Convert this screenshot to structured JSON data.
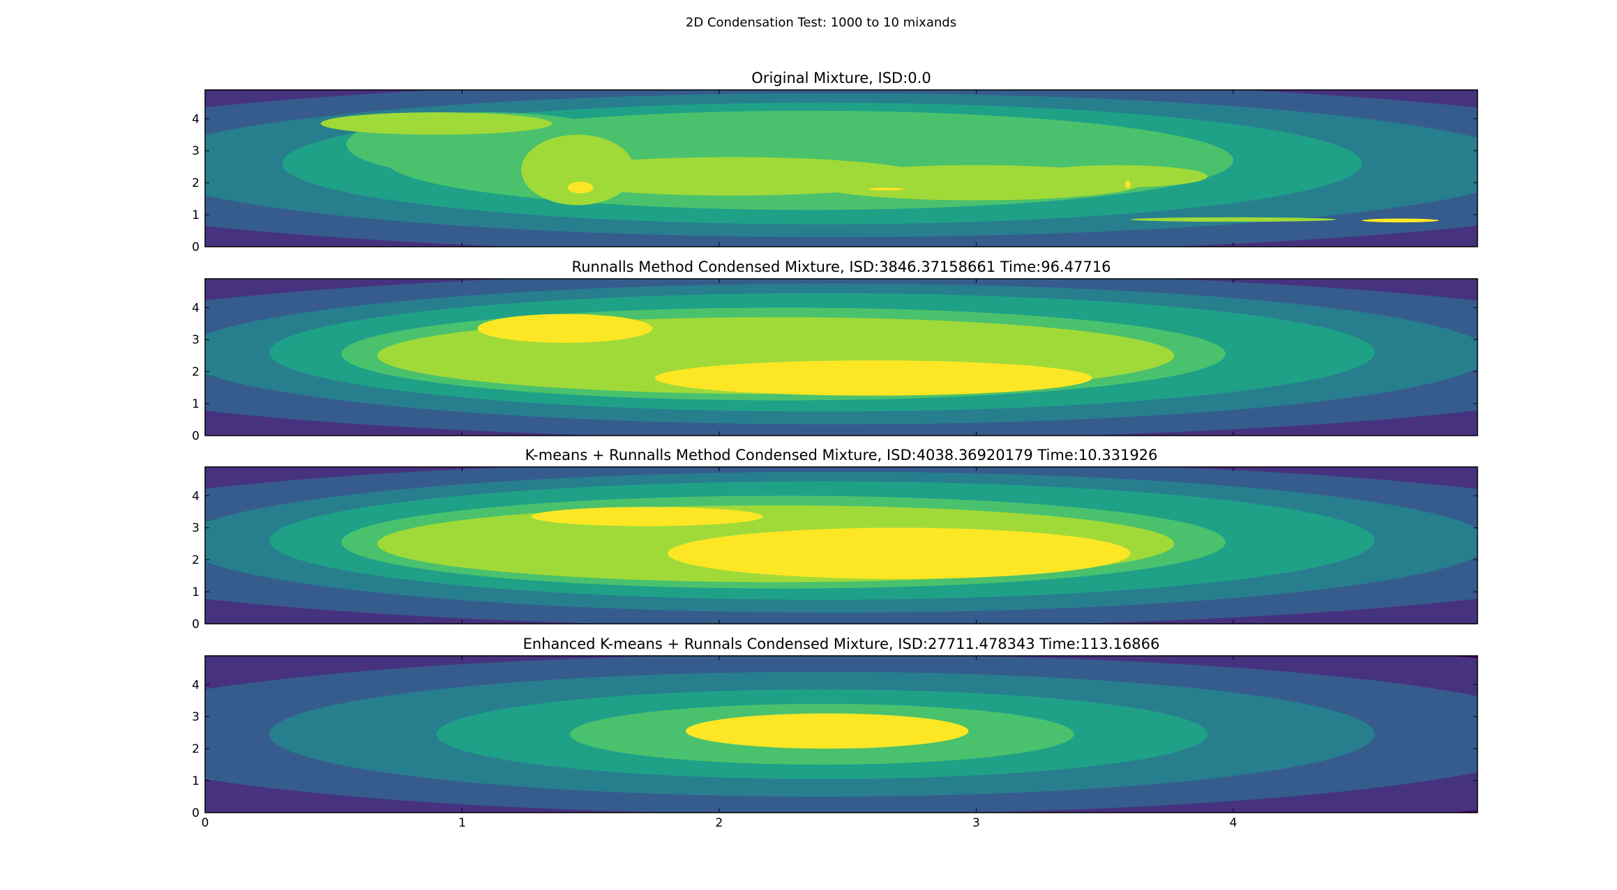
{
  "figure": {
    "suptitle": "2D Condensation Test: 1000 to 10 mixands"
  },
  "colormap": [
    "#440154",
    "#46327e",
    "#365c8d",
    "#277f8e",
    "#1fa187",
    "#4ac16d",
    "#a0da39",
    "#fde725"
  ],
  "chart_data": [
    {
      "type": "contour",
      "title": "Original Mixture, ISD:0.0",
      "xlabel": "",
      "ylabel": "",
      "xlim": [
        0,
        4.95
      ],
      "ylim": [
        0,
        4.9
      ],
      "xticks": [
        "0",
        "1",
        "2",
        "3",
        "4"
      ],
      "yticks": [
        "0",
        "1",
        "2",
        "3",
        "4"
      ],
      "show_x_tick_labels": false,
      "bands": [
        {
          "color": "#46327e",
          "shape": "ellipse",
          "cx": 2.47,
          "cy": 2.45,
          "rx": 4.8,
          "ry": 4.6
        },
        {
          "color": "#365c8d",
          "shape": "ellipse",
          "cx": 2.47,
          "cy": 2.5,
          "rx": 3.4,
          "ry": 2.7
        },
        {
          "color": "#277f8e",
          "shape": "ellipse",
          "cx": 2.45,
          "cy": 2.55,
          "rx": 2.7,
          "ry": 2.25
        },
        {
          "color": "#1fa187",
          "shape": "ellipse",
          "cx": 2.4,
          "cy": 2.6,
          "rx": 2.1,
          "ry": 1.9
        },
        {
          "color": "#4ac16d",
          "shape": "ellipse",
          "cx": 2.35,
          "cy": 2.7,
          "rx": 1.65,
          "ry": 1.55
        },
        {
          "color": "#4ac16d",
          "shape": "ellipse",
          "cx": 1.1,
          "cy": 3.2,
          "rx": 0.55,
          "ry": 1.0
        },
        {
          "color": "#a0da39",
          "shape": "ellipse",
          "cx": 0.9,
          "cy": 3.85,
          "rx": 0.45,
          "ry": 0.35
        },
        {
          "color": "#a0da39",
          "shape": "ellipse",
          "cx": 2.05,
          "cy": 2.2,
          "rx": 0.75,
          "ry": 0.6
        },
        {
          "color": "#a0da39",
          "shape": "ellipse",
          "cx": 3.0,
          "cy": 2.0,
          "rx": 0.65,
          "ry": 0.55
        },
        {
          "color": "#a0da39",
          "shape": "ellipse",
          "cx": 1.45,
          "cy": 2.4,
          "rx": 0.22,
          "ry": 1.1
        },
        {
          "color": "#a0da39",
          "shape": "ellipse",
          "cx": 3.55,
          "cy": 2.2,
          "rx": 0.35,
          "ry": 0.35
        },
        {
          "color": "#a0da39",
          "shape": "ellipse",
          "cx": 4.0,
          "cy": 0.85,
          "rx": 0.4,
          "ry": 0.07
        },
        {
          "color": "#fde725",
          "shape": "ellipse",
          "cx": 1.46,
          "cy": 1.85,
          "rx": 0.05,
          "ry": 0.18
        },
        {
          "color": "#fde725",
          "shape": "ellipse",
          "cx": 2.65,
          "cy": 1.8,
          "rx": 0.07,
          "ry": 0.04
        },
        {
          "color": "#fde725",
          "shape": "ellipse",
          "cx": 3.59,
          "cy": 1.95,
          "rx": 0.01,
          "ry": 0.12
        },
        {
          "color": "#fde725",
          "shape": "ellipse",
          "cx": 4.65,
          "cy": 0.82,
          "rx": 0.15,
          "ry": 0.06
        }
      ]
    },
    {
      "type": "contour",
      "title": "Runnalls Method Condensed Mixture, ISD:3846.37158661 Time:96.47716",
      "xlabel": "",
      "ylabel": "",
      "xlim": [
        0,
        4.95
      ],
      "ylim": [
        0,
        4.9
      ],
      "xticks": [
        "0",
        "1",
        "2",
        "3",
        "4"
      ],
      "yticks": [
        "0",
        "1",
        "2",
        "3",
        "4"
      ],
      "show_x_tick_labels": false,
      "bands": [
        {
          "color": "#46327e",
          "shape": "ellipse",
          "cx": 2.47,
          "cy": 2.45,
          "rx": 4.8,
          "ry": 4.6
        },
        {
          "color": "#365c8d",
          "shape": "ellipse",
          "cx": 2.47,
          "cy": 2.5,
          "rx": 3.3,
          "ry": 2.6
        },
        {
          "color": "#277f8e",
          "shape": "ellipse",
          "cx": 2.45,
          "cy": 2.55,
          "rx": 2.55,
          "ry": 2.2
        },
        {
          "color": "#1fa187",
          "shape": "ellipse",
          "cx": 2.4,
          "cy": 2.6,
          "rx": 2.15,
          "ry": 1.85
        },
        {
          "color": "#4ac16d",
          "shape": "ellipse",
          "cx": 2.25,
          "cy": 2.55,
          "rx": 1.72,
          "ry": 1.45
        },
        {
          "color": "#a0da39",
          "shape": "ellipse",
          "cx": 2.22,
          "cy": 2.5,
          "rx": 1.55,
          "ry": 1.2
        },
        {
          "color": "#fde725",
          "shape": "ellipse",
          "cx": 1.4,
          "cy": 3.35,
          "rx": 0.34,
          "ry": 0.45
        },
        {
          "color": "#fde725",
          "shape": "ellipse",
          "cx": 2.6,
          "cy": 1.8,
          "rx": 0.85,
          "ry": 0.55
        }
      ]
    },
    {
      "type": "contour",
      "title": "K-means + Runnalls Method Condensed Mixture, ISD:4038.36920179 Time:10.331926",
      "xlabel": "",
      "ylabel": "",
      "xlim": [
        0,
        4.95
      ],
      "ylim": [
        0,
        4.9
      ],
      "xticks": [
        "0",
        "1",
        "2",
        "3",
        "4"
      ],
      "yticks": [
        "0",
        "1",
        "2",
        "3",
        "4"
      ],
      "show_x_tick_labels": false,
      "bands": [
        {
          "color": "#46327e",
          "shape": "ellipse",
          "cx": 2.47,
          "cy": 2.45,
          "rx": 4.8,
          "ry": 4.6
        },
        {
          "color": "#365c8d",
          "shape": "ellipse",
          "cx": 2.47,
          "cy": 2.5,
          "rx": 3.3,
          "ry": 2.6
        },
        {
          "color": "#277f8e",
          "shape": "ellipse",
          "cx": 2.45,
          "cy": 2.55,
          "rx": 2.55,
          "ry": 2.2
        },
        {
          "color": "#1fa187",
          "shape": "ellipse",
          "cx": 2.4,
          "cy": 2.6,
          "rx": 2.15,
          "ry": 1.85
        },
        {
          "color": "#4ac16d",
          "shape": "ellipse",
          "cx": 2.25,
          "cy": 2.55,
          "rx": 1.72,
          "ry": 1.45
        },
        {
          "color": "#a0da39",
          "shape": "ellipse",
          "cx": 2.22,
          "cy": 2.5,
          "rx": 1.55,
          "ry": 1.2
        },
        {
          "color": "#fde725",
          "shape": "ellipse",
          "cx": 1.72,
          "cy": 3.35,
          "rx": 0.45,
          "ry": 0.3
        },
        {
          "color": "#fde725",
          "shape": "ellipse",
          "cx": 2.7,
          "cy": 2.2,
          "rx": 0.9,
          "ry": 0.8
        }
      ]
    },
    {
      "type": "contour",
      "title": "Enhanced K-means + Runnals Condensed Mixture, ISD:27711.478343 Time:113.16866",
      "xlabel": "",
      "ylabel": "",
      "xlim": [
        0,
        4.95
      ],
      "ylim": [
        0,
        4.9
      ],
      "xticks": [
        "0",
        "1",
        "2",
        "3",
        "4"
      ],
      "yticks": [
        "0",
        "1",
        "2",
        "3",
        "4"
      ],
      "show_x_tick_labels": true,
      "bands": [
        {
          "color": "#440154",
          "shape": "ellipse",
          "cx": 2.4,
          "cy": 2.45,
          "rx": 4.8,
          "ry": 4.6
        },
        {
          "color": "#46327e",
          "shape": "ellipse",
          "cx": 2.4,
          "cy": 2.45,
          "rx": 3.8,
          "ry": 3.2
        },
        {
          "color": "#365c8d",
          "shape": "ellipse",
          "cx": 2.4,
          "cy": 2.45,
          "rx": 2.9,
          "ry": 2.5
        },
        {
          "color": "#277f8e",
          "shape": "ellipse",
          "cx": 2.4,
          "cy": 2.45,
          "rx": 2.15,
          "ry": 1.95
        },
        {
          "color": "#1fa187",
          "shape": "ellipse",
          "cx": 2.4,
          "cy": 2.45,
          "rx": 1.5,
          "ry": 1.4
        },
        {
          "color": "#4ac16d",
          "shape": "ellipse",
          "cx": 2.4,
          "cy": 2.45,
          "rx": 0.98,
          "ry": 0.95
        },
        {
          "color": "#fde725",
          "shape": "ellipse",
          "cx": 2.42,
          "cy": 2.55,
          "rx": 0.55,
          "ry": 0.55
        }
      ]
    }
  ]
}
